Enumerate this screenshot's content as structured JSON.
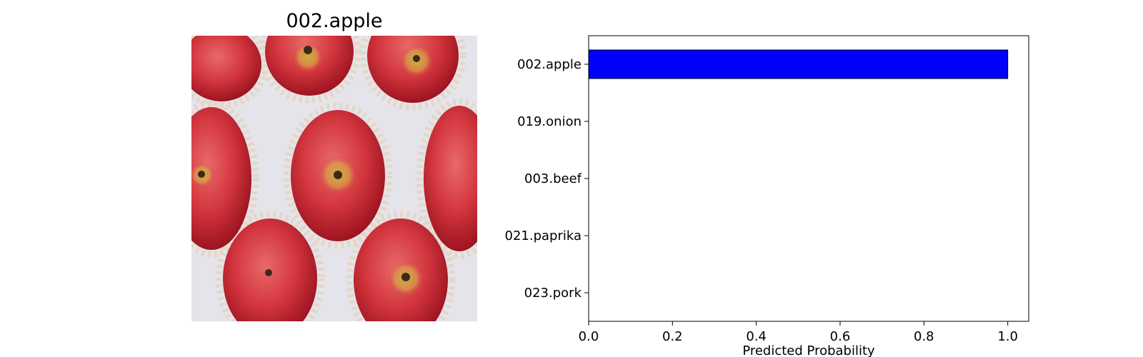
{
  "image_panel": {
    "title": "002.apple",
    "photo": "red-apples-in-foam-nets"
  },
  "chart_data": {
    "type": "bar",
    "orientation": "horizontal",
    "categories": [
      "002.apple",
      "019.onion",
      "003.beef",
      "021.paprika",
      "023.pork"
    ],
    "values": [
      1.0,
      0.0,
      0.0,
      0.0,
      0.0
    ],
    "xlabel": "Predicted Probability",
    "ylabel": "",
    "xlim": [
      0.0,
      1.05
    ],
    "xticks": [
      "0.0",
      "0.2",
      "0.4",
      "0.6",
      "0.8",
      "1.0"
    ],
    "grid": false,
    "legend": "none",
    "bar_color": "#0000ff",
    "edge_color": "#000000"
  }
}
